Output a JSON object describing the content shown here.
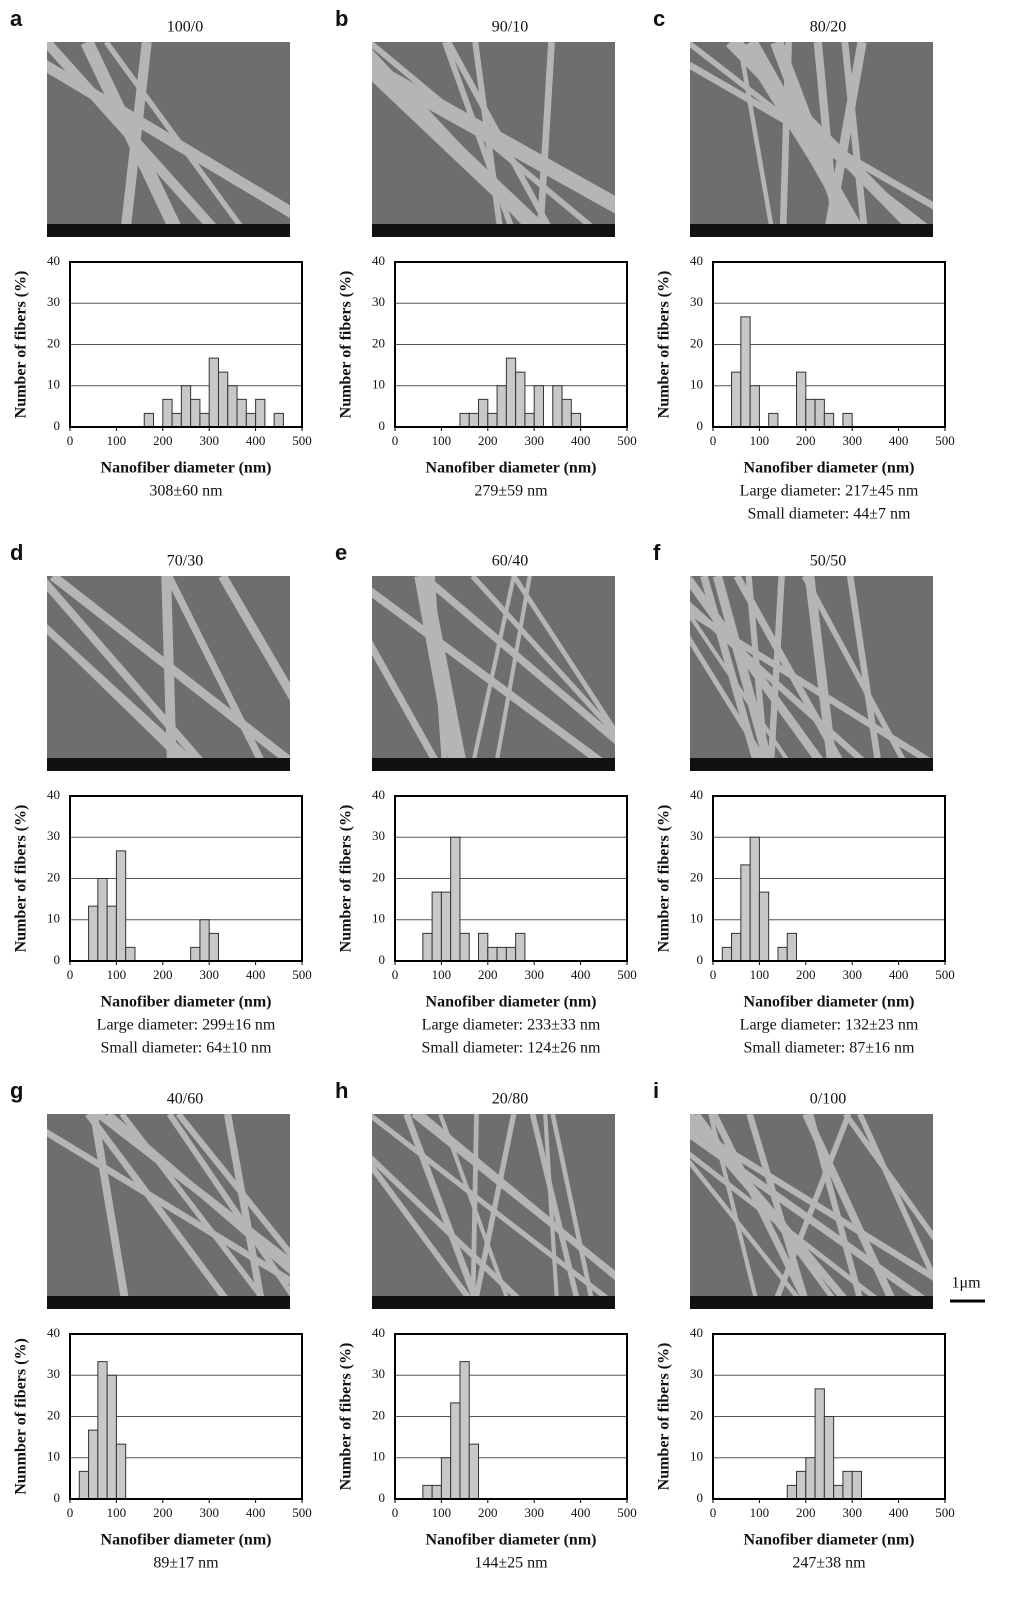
{
  "scale_bar_label": "1μm",
  "chart_data": [
    {
      "type": "histogram",
      "panel": "a",
      "title": "100/0",
      "ylabel": "Number of fibers (%)",
      "xlabel": "Nanofiber diameter (nm)",
      "captions": [
        "308±60 nm"
      ],
      "bins": [
        0,
        20,
        40,
        60,
        80,
        100,
        120,
        140,
        160,
        180,
        200,
        220,
        240,
        260,
        280,
        300,
        320,
        340,
        360,
        380,
        400,
        420,
        440,
        460,
        480,
        500
      ],
      "counts": [
        0,
        0,
        0,
        0,
        0,
        0,
        0,
        0,
        3.3,
        0,
        6.7,
        3.3,
        10,
        6.7,
        3.3,
        16.7,
        13.3,
        10,
        6.7,
        3.3,
        6.7,
        0,
        3.3,
        0,
        0
      ],
      "color": "#c8c8c8",
      "xlim": [
        0,
        500
      ],
      "ylim": [
        0,
        40
      ],
      "xticks": [
        0,
        100,
        200,
        300,
        400,
        500
      ],
      "yticks": [
        0,
        10,
        20,
        30,
        40
      ],
      "grid": true
    },
    {
      "type": "histogram",
      "panel": "b",
      "title": "90/10",
      "ylabel": "Number of fibers (%)",
      "xlabel": "Nanofiber diameter (nm)",
      "captions": [
        "279±59 nm"
      ],
      "bins": [
        0,
        20,
        40,
        60,
        80,
        100,
        120,
        140,
        160,
        180,
        200,
        220,
        240,
        260,
        280,
        300,
        320,
        340,
        360,
        380,
        400,
        420,
        440,
        460,
        480,
        500
      ],
      "counts": [
        0,
        0,
        0,
        0,
        0,
        0,
        0,
        3.3,
        3.3,
        6.7,
        3.3,
        10,
        16.7,
        13.3,
        3.3,
        10,
        0,
        10,
        6.7,
        3.3,
        0,
        0,
        0,
        0,
        0
      ],
      "color": "#c8c8c8",
      "xlim": [
        0,
        500
      ],
      "ylim": [
        0,
        40
      ],
      "xticks": [
        0,
        100,
        200,
        300,
        400,
        500
      ],
      "yticks": [
        0,
        10,
        20,
        30,
        40
      ],
      "grid": true
    },
    {
      "type": "histogram",
      "panel": "c",
      "title": "80/20",
      "ylabel": "Number of fibers (%)",
      "xlabel": "Nanofiber diameter (nm)",
      "captions": [
        "Large diameter: 217±45 nm",
        "Small diameter: 44±7 nm"
      ],
      "bins": [
        0,
        20,
        40,
        60,
        80,
        100,
        120,
        140,
        160,
        180,
        200,
        220,
        240,
        260,
        280,
        300,
        320,
        340,
        360,
        380,
        400,
        420,
        440,
        460,
        480,
        500
      ],
      "counts": [
        0,
        0,
        13.3,
        26.7,
        10,
        0,
        3.3,
        0,
        0,
        13.3,
        6.7,
        6.7,
        3.3,
        0,
        3.3,
        0,
        0,
        0,
        0,
        0,
        0,
        0,
        0,
        0,
        0
      ],
      "color": "#c8c8c8",
      "xlim": [
        0,
        500
      ],
      "ylim": [
        0,
        40
      ],
      "xticks": [
        0,
        100,
        200,
        300,
        400,
        500
      ],
      "yticks": [
        0,
        10,
        20,
        30,
        40
      ],
      "grid": true
    },
    {
      "type": "histogram",
      "panel": "d",
      "title": "70/30",
      "ylabel": "Number of fibers (%)",
      "xlabel": "Nanofiber diameter (nm)",
      "captions": [
        "Large diameter: 299±16 nm",
        "Small diameter: 64±10 nm"
      ],
      "bins": [
        0,
        20,
        40,
        60,
        80,
        100,
        120,
        140,
        160,
        180,
        200,
        220,
        240,
        260,
        280,
        300,
        320,
        340,
        360,
        380,
        400,
        420,
        440,
        460,
        480,
        500
      ],
      "counts": [
        0,
        0,
        13.3,
        20,
        13.3,
        26.7,
        3.3,
        0,
        0,
        0,
        0,
        0,
        0,
        3.3,
        10,
        6.7,
        0,
        0,
        0,
        0,
        0,
        0,
        0,
        0,
        0
      ],
      "color": "#c8c8c8",
      "xlim": [
        0,
        500
      ],
      "ylim": [
        0,
        40
      ],
      "xticks": [
        0,
        100,
        200,
        300,
        400,
        500
      ],
      "yticks": [
        0,
        10,
        20,
        30,
        40
      ],
      "grid": true
    },
    {
      "type": "histogram",
      "panel": "e",
      "title": "60/40",
      "ylabel": "Number of fibers (%)",
      "xlabel": "Nanofiber diameter (nm)",
      "captions": [
        "Large diameter: 233±33 nm",
        "Small diameter: 124±26 nm"
      ],
      "bins": [
        0,
        20,
        40,
        60,
        80,
        100,
        120,
        140,
        160,
        180,
        200,
        220,
        240,
        260,
        280,
        300,
        320,
        340,
        360,
        380,
        400,
        420,
        440,
        460,
        480,
        500
      ],
      "counts": [
        0,
        0,
        0,
        6.7,
        16.7,
        16.7,
        30,
        6.7,
        0,
        6.7,
        3.3,
        3.3,
        3.3,
        6.7,
        0,
        0,
        0,
        0,
        0,
        0,
        0,
        0,
        0,
        0,
        0
      ],
      "color": "#c8c8c8",
      "xlim": [
        0,
        500
      ],
      "ylim": [
        0,
        40
      ],
      "xticks": [
        0,
        100,
        200,
        300,
        400,
        500
      ],
      "yticks": [
        0,
        10,
        20,
        30,
        40
      ],
      "grid": true
    },
    {
      "type": "histogram",
      "panel": "f",
      "title": "50/50",
      "ylabel": "Number of fibers (%)",
      "xlabel": "Nanofiber diameter (nm)",
      "captions": [
        "Large diameter: 132±23 nm",
        "Small diameter: 87±16 nm"
      ],
      "bins": [
        0,
        20,
        40,
        60,
        80,
        100,
        120,
        140,
        160,
        180,
        200,
        220,
        240,
        260,
        280,
        300,
        320,
        340,
        360,
        380,
        400,
        420,
        440,
        460,
        480,
        500
      ],
      "counts": [
        0,
        3.3,
        6.7,
        23.3,
        30,
        16.7,
        0,
        3.3,
        6.7,
        0,
        0,
        0,
        0,
        0,
        0,
        0,
        0,
        0,
        0,
        0,
        0,
        0,
        0,
        0,
        0
      ],
      "color": "#c8c8c8",
      "xlim": [
        0,
        500
      ],
      "ylim": [
        0,
        40
      ],
      "xticks": [
        0,
        100,
        200,
        300,
        400,
        500
      ],
      "yticks": [
        0,
        10,
        20,
        30,
        40
      ],
      "grid": true
    },
    {
      "type": "histogram",
      "panel": "g",
      "title": "40/60",
      "ylabel": "Nunmber of fibers (%)",
      "xlabel": "Nanofiber diameter (nm)",
      "captions": [
        "89±17 nm"
      ],
      "bins": [
        0,
        20,
        40,
        60,
        80,
        100,
        120,
        140,
        160,
        180,
        200,
        220,
        240,
        260,
        280,
        300,
        320,
        340,
        360,
        380,
        400,
        420,
        440,
        460,
        480,
        500
      ],
      "counts": [
        0,
        6.7,
        16.7,
        33.3,
        30,
        13.3,
        0,
        0,
        0,
        0,
        0,
        0,
        0,
        0,
        0,
        0,
        0,
        0,
        0,
        0,
        0,
        0,
        0,
        0,
        0
      ],
      "color": "#c8c8c8",
      "xlim": [
        0,
        500
      ],
      "ylim": [
        0,
        40
      ],
      "xticks": [
        0,
        100,
        200,
        300,
        400,
        500
      ],
      "yticks": [
        0,
        10,
        20,
        30,
        40
      ],
      "grid": true
    },
    {
      "type": "histogram",
      "panel": "h",
      "title": "20/80",
      "ylabel": "Number of fibers (%)",
      "xlabel": "Nanofiber diameter (nm)",
      "captions": [
        "144±25 nm"
      ],
      "bins": [
        0,
        20,
        40,
        60,
        80,
        100,
        120,
        140,
        160,
        180,
        200,
        220,
        240,
        260,
        280,
        300,
        320,
        340,
        360,
        380,
        400,
        420,
        440,
        460,
        480,
        500
      ],
      "counts": [
        0,
        0,
        0,
        3.3,
        3.3,
        10,
        23.3,
        33.3,
        13.3,
        0,
        0,
        0,
        0,
        0,
        0,
        0,
        0,
        0,
        0,
        0,
        0,
        0,
        0,
        0,
        0
      ],
      "color": "#c8c8c8",
      "xlim": [
        0,
        500
      ],
      "ylim": [
        0,
        40
      ],
      "xticks": [
        0,
        100,
        200,
        300,
        400,
        500
      ],
      "yticks": [
        0,
        10,
        20,
        30,
        40
      ],
      "grid": true
    },
    {
      "type": "histogram",
      "panel": "i",
      "title": "0/100",
      "ylabel": "Number of fibers (%)",
      "xlabel": "Nanofiber diameter (nm)",
      "captions": [
        "247±38 nm"
      ],
      "bins": [
        0,
        20,
        40,
        60,
        80,
        100,
        120,
        140,
        160,
        180,
        200,
        220,
        240,
        260,
        280,
        300,
        320,
        340,
        360,
        380,
        400,
        420,
        440,
        460,
        480,
        500
      ],
      "counts": [
        0,
        0,
        0,
        0,
        0,
        0,
        0,
        0,
        3.3,
        6.7,
        10,
        26.7,
        20,
        3.3,
        6.7,
        6.7,
        0,
        0,
        0,
        0,
        0,
        0,
        0,
        0,
        0
      ],
      "color": "#c8c8c8",
      "xlim": [
        0,
        500
      ],
      "ylim": [
        0,
        40
      ],
      "xticks": [
        0,
        100,
        200,
        300,
        400,
        500
      ],
      "yticks": [
        0,
        10,
        20,
        30,
        40
      ],
      "grid": true
    }
  ]
}
